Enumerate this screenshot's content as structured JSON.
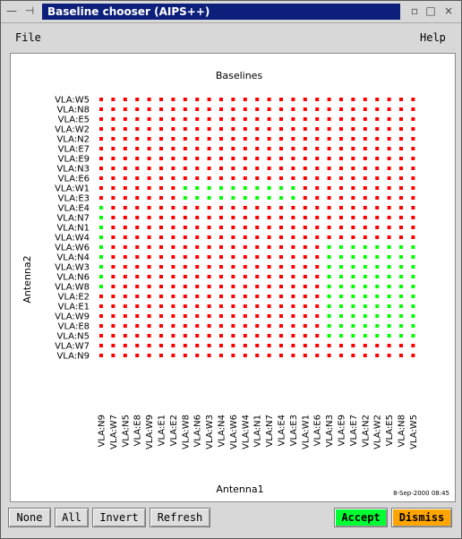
{
  "window": {
    "title": "Baseline chooser (AIPS++)",
    "controls": [
      "—",
      "⊣",
      "▫",
      "□",
      "×"
    ]
  },
  "menubar": {
    "file_label": "File",
    "help_label": "Help"
  },
  "chart_data": {
    "type": "scatter",
    "title": "Baselines",
    "xlabel": "Antenna1",
    "ylabel": "Antenna2",
    "timestamp": "8-Sep-2000 08:45",
    "x_categories": [
      "VLA:N9",
      "VLA:W7",
      "VLA:N5",
      "VLA:E8",
      "VLA:W9",
      "VLA:E1",
      "VLA:E2",
      "VLA:W8",
      "VLA:N6",
      "VLA:W3",
      "VLA:N4",
      "VLA:W6",
      "VLA:W4",
      "VLA:N1",
      "VLA:N7",
      "VLA:E4",
      "VLA:E3",
      "VLA:W1",
      "VLA:E6",
      "VLA:N3",
      "VLA:E9",
      "VLA:E7",
      "VLA:N2",
      "VLA:W2",
      "VLA:E5",
      "VLA:N8",
      "VLA:W5"
    ],
    "y_categories": [
      "VLA:W5",
      "VLA:N8",
      "VLA:E5",
      "VLA:W2",
      "VLA:N2",
      "VLA:E7",
      "VLA:E9",
      "VLA:N3",
      "VLA:E6",
      "VLA:W1",
      "VLA:E3",
      "VLA:E4",
      "VLA:N7",
      "VLA:N1",
      "VLA:W4",
      "VLA:W6",
      "VLA:N4",
      "VLA:W3",
      "VLA:N6",
      "VLA:W8",
      "VLA:E2",
      "VLA:E1",
      "VLA:W9",
      "VLA:E8",
      "VLA:N5",
      "VLA:W7",
      "VLA:N9"
    ],
    "series": [
      {
        "state": "selected",
        "color": "#00ff00",
        "points": [
          [
            "VLA:W8",
            "VLA:W1"
          ],
          [
            "VLA:N6",
            "VLA:W1"
          ],
          [
            "VLA:W3",
            "VLA:W1"
          ],
          [
            "VLA:N4",
            "VLA:W1"
          ],
          [
            "VLA:W6",
            "VLA:W1"
          ],
          [
            "VLA:W4",
            "VLA:W1"
          ],
          [
            "VLA:N1",
            "VLA:W1"
          ],
          [
            "VLA:N7",
            "VLA:W1"
          ],
          [
            "VLA:E4",
            "VLA:W1"
          ],
          [
            "VLA:E3",
            "VLA:W1"
          ],
          [
            "VLA:W8",
            "VLA:E3"
          ],
          [
            "VLA:N6",
            "VLA:E3"
          ],
          [
            "VLA:W3",
            "VLA:E3"
          ],
          [
            "VLA:N4",
            "VLA:E3"
          ],
          [
            "VLA:W6",
            "VLA:E3"
          ],
          [
            "VLA:W4",
            "VLA:E3"
          ],
          [
            "VLA:N1",
            "VLA:E3"
          ],
          [
            "VLA:N7",
            "VLA:E3"
          ],
          [
            "VLA:E4",
            "VLA:E3"
          ],
          [
            "VLA:E3",
            "VLA:E3"
          ],
          [
            "VLA:N9",
            "VLA:E4"
          ],
          [
            "VLA:N9",
            "VLA:N7"
          ],
          [
            "VLA:N9",
            "VLA:N1"
          ],
          [
            "VLA:N9",
            "VLA:W4"
          ],
          [
            "VLA:N9",
            "VLA:W6"
          ],
          [
            "VLA:N9",
            "VLA:N4"
          ],
          [
            "VLA:N9",
            "VLA:W3"
          ],
          [
            "VLA:N9",
            "VLA:N6"
          ],
          [
            "VLA:N9",
            "VLA:W8"
          ],
          [
            "VLA:N3",
            "VLA:W6"
          ],
          [
            "VLA:E9",
            "VLA:W6"
          ],
          [
            "VLA:E7",
            "VLA:W6"
          ],
          [
            "VLA:N2",
            "VLA:W6"
          ],
          [
            "VLA:W2",
            "VLA:W6"
          ],
          [
            "VLA:E5",
            "VLA:W6"
          ],
          [
            "VLA:N8",
            "VLA:W6"
          ],
          [
            "VLA:W5",
            "VLA:W6"
          ],
          [
            "VLA:N3",
            "VLA:N4"
          ],
          [
            "VLA:E9",
            "VLA:N4"
          ],
          [
            "VLA:E7",
            "VLA:N4"
          ],
          [
            "VLA:N2",
            "VLA:N4"
          ],
          [
            "VLA:W2",
            "VLA:N4"
          ],
          [
            "VLA:E5",
            "VLA:N4"
          ],
          [
            "VLA:N8",
            "VLA:N4"
          ],
          [
            "VLA:W5",
            "VLA:N4"
          ],
          [
            "VLA:N3",
            "VLA:W3"
          ],
          [
            "VLA:E9",
            "VLA:W3"
          ],
          [
            "VLA:E7",
            "VLA:W3"
          ],
          [
            "VLA:N2",
            "VLA:W3"
          ],
          [
            "VLA:W2",
            "VLA:W3"
          ],
          [
            "VLA:E5",
            "VLA:W3"
          ],
          [
            "VLA:N8",
            "VLA:W3"
          ],
          [
            "VLA:W5",
            "VLA:W3"
          ],
          [
            "VLA:N3",
            "VLA:N6"
          ],
          [
            "VLA:E9",
            "VLA:N6"
          ],
          [
            "VLA:E7",
            "VLA:N6"
          ],
          [
            "VLA:N2",
            "VLA:N6"
          ],
          [
            "VLA:W2",
            "VLA:N6"
          ],
          [
            "VLA:E5",
            "VLA:N6"
          ],
          [
            "VLA:N8",
            "VLA:N6"
          ],
          [
            "VLA:W5",
            "VLA:N6"
          ],
          [
            "VLA:N3",
            "VLA:W8"
          ],
          [
            "VLA:E9",
            "VLA:W8"
          ],
          [
            "VLA:E7",
            "VLA:W8"
          ],
          [
            "VLA:N2",
            "VLA:W8"
          ],
          [
            "VLA:W2",
            "VLA:W8"
          ],
          [
            "VLA:E5",
            "VLA:W8"
          ],
          [
            "VLA:N8",
            "VLA:W8"
          ],
          [
            "VLA:W5",
            "VLA:W8"
          ],
          [
            "VLA:N3",
            "VLA:E2"
          ],
          [
            "VLA:E9",
            "VLA:E2"
          ],
          [
            "VLA:E7",
            "VLA:E2"
          ],
          [
            "VLA:N2",
            "VLA:E2"
          ],
          [
            "VLA:W2",
            "VLA:E2"
          ],
          [
            "VLA:E5",
            "VLA:E2"
          ],
          [
            "VLA:N8",
            "VLA:E2"
          ],
          [
            "VLA:W5",
            "VLA:E2"
          ],
          [
            "VLA:N3",
            "VLA:E1"
          ],
          [
            "VLA:E9",
            "VLA:E1"
          ],
          [
            "VLA:E7",
            "VLA:E1"
          ],
          [
            "VLA:N2",
            "VLA:E1"
          ],
          [
            "VLA:W2",
            "VLA:E1"
          ],
          [
            "VLA:E5",
            "VLA:E1"
          ],
          [
            "VLA:N8",
            "VLA:E1"
          ],
          [
            "VLA:W5",
            "VLA:E1"
          ],
          [
            "VLA:N3",
            "VLA:W9"
          ],
          [
            "VLA:E9",
            "VLA:W9"
          ],
          [
            "VLA:E7",
            "VLA:W9"
          ],
          [
            "VLA:N2",
            "VLA:W9"
          ],
          [
            "VLA:W2",
            "VLA:W9"
          ],
          [
            "VLA:E5",
            "VLA:W9"
          ],
          [
            "VLA:N8",
            "VLA:W9"
          ],
          [
            "VLA:W5",
            "VLA:W9"
          ],
          [
            "VLA:N3",
            "VLA:E8"
          ],
          [
            "VLA:E9",
            "VLA:E8"
          ],
          [
            "VLA:E7",
            "VLA:E8"
          ],
          [
            "VLA:N2",
            "VLA:E8"
          ],
          [
            "VLA:W2",
            "VLA:E8"
          ],
          [
            "VLA:E5",
            "VLA:E8"
          ],
          [
            "VLA:N8",
            "VLA:E8"
          ],
          [
            "VLA:W5",
            "VLA:E8"
          ],
          [
            "VLA:N3",
            "VLA:N5"
          ],
          [
            "VLA:E9",
            "VLA:N5"
          ],
          [
            "VLA:E7",
            "VLA:N5"
          ],
          [
            "VLA:N2",
            "VLA:N5"
          ],
          [
            "VLA:W2",
            "VLA:N5"
          ],
          [
            "VLA:E5",
            "VLA:N5"
          ],
          [
            "VLA:N8",
            "VLA:N5"
          ],
          [
            "VLA:W5",
            "VLA:N5"
          ]
        ]
      },
      {
        "state": "unselected",
        "color": "#ff0000",
        "points": "all other cells of the 27x27 grid"
      }
    ],
    "grid": false,
    "legend": "none"
  },
  "buttons": {
    "none_label": "None",
    "all_label": "All",
    "invert_label": "Invert",
    "refresh_label": "Refresh",
    "accept_label": "Accept",
    "dismiss_label": "Dismiss",
    "accept_color": "#00ff33",
    "dismiss_color": "#ffa500"
  }
}
